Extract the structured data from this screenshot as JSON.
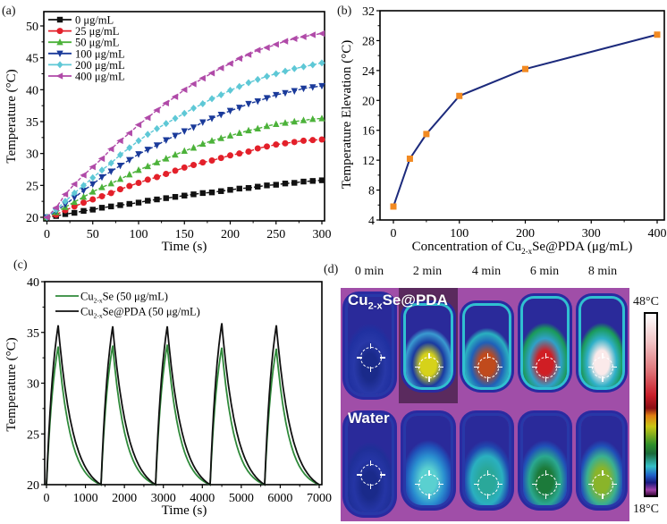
{
  "chart_data": [
    {
      "panel": "(a)",
      "type": "line",
      "title": "",
      "xlabel": "Time (s)",
      "ylabel": "Temperature (°C)",
      "xlim": [
        0,
        300
      ],
      "ylim": [
        20,
        51
      ],
      "xticks": [
        0,
        50,
        100,
        150,
        200,
        250,
        300
      ],
      "yticks": [
        20,
        25,
        30,
        35,
        40,
        45,
        50
      ],
      "legend_position": "top-left",
      "x": [
        0,
        10,
        20,
        30,
        40,
        50,
        60,
        70,
        80,
        90,
        100,
        110,
        120,
        130,
        140,
        150,
        160,
        170,
        180,
        190,
        200,
        210,
        220,
        230,
        240,
        250,
        260,
        270,
        280,
        290,
        300
      ],
      "series": [
        {
          "name": "0 μg/mL",
          "color": "#111111",
          "marker": "square",
          "values": [
            20,
            20.2,
            20.5,
            20.7,
            21.0,
            21.2,
            21.5,
            21.7,
            21.9,
            22.1,
            22.3,
            22.6,
            22.8,
            23.0,
            23.2,
            23.4,
            23.6,
            23.8,
            23.9,
            24.1,
            24.3,
            24.5,
            24.6,
            24.8,
            25.0,
            25.1,
            25.3,
            25.4,
            25.6,
            25.7,
            25.8
          ]
        },
        {
          "name": "25 μg/mL",
          "color": "#e3202a",
          "marker": "circle",
          "values": [
            20,
            20.4,
            21.1,
            21.7,
            22.3,
            22.8,
            23.3,
            23.8,
            24.4,
            24.9,
            25.4,
            25.9,
            26.3,
            26.8,
            27.3,
            27.8,
            28.2,
            28.6,
            28.9,
            29.3,
            29.7,
            30.0,
            30.3,
            30.8,
            31.1,
            31.4,
            31.6,
            31.8,
            32.0,
            32.1,
            32.2
          ]
        },
        {
          "name": "50 μg/mL",
          "color": "#4cb23a",
          "marker": "triangle-up",
          "values": [
            20,
            20.8,
            21.6,
            22.4,
            23.2,
            24.0,
            24.7,
            25.3,
            26.0,
            26.7,
            27.4,
            28.0,
            28.6,
            29.2,
            29.8,
            30.4,
            30.9,
            31.5,
            32.0,
            32.4,
            32.8,
            33.2,
            33.6,
            33.9,
            34.3,
            34.6,
            34.8,
            35.0,
            35.2,
            35.4,
            35.5
          ]
        },
        {
          "name": "100 μg/mL",
          "color": "#1a3a9a",
          "marker": "triangle-down",
          "values": [
            20,
            21.0,
            22.0,
            23.1,
            24.2,
            25.2,
            26.3,
            27.2,
            28.1,
            29.0,
            29.9,
            30.6,
            31.3,
            32.1,
            32.8,
            33.5,
            34.1,
            34.9,
            35.5,
            36.1,
            36.7,
            37.2,
            37.8,
            38.2,
            38.7,
            39.2,
            39.5,
            39.8,
            40.2,
            40.4,
            40.6
          ]
        },
        {
          "name": "200 μg/mL",
          "color": "#5ec8d6",
          "marker": "diamond",
          "values": [
            20,
            21.2,
            22.5,
            23.8,
            25.0,
            26.2,
            27.4,
            28.5,
            29.8,
            30.9,
            32.0,
            33.0,
            33.9,
            34.7,
            35.5,
            36.3,
            37.1,
            37.8,
            38.6,
            39.2,
            39.9,
            40.5,
            41.1,
            41.6,
            42.1,
            42.5,
            42.9,
            43.3,
            43.6,
            43.9,
            44.2
          ]
        },
        {
          "name": "400 μg/mL",
          "color": "#b04aa8",
          "marker": "triangle-left",
          "values": [
            20,
            21.5,
            23.6,
            25.2,
            26.6,
            27.9,
            29.2,
            30.7,
            32.0,
            33.2,
            34.5,
            35.6,
            36.8,
            37.9,
            38.9,
            40.0,
            40.9,
            41.8,
            42.6,
            43.4,
            44.1,
            44.9,
            45.5,
            46.2,
            46.6,
            47.1,
            47.6,
            48.0,
            48.3,
            48.6,
            48.8
          ]
        }
      ]
    },
    {
      "panel": "(b)",
      "type": "line",
      "title": "",
      "xlabel_main": "Concentration of Cu",
      "xlabel_sub": "2-x",
      "xlabel_rest": "Se@PDA (μg/mL)",
      "ylabel": "Temperature Elevation (°C)",
      "xlim": [
        -15,
        405
      ],
      "ylim": [
        4,
        32
      ],
      "xticks": [
        0,
        100,
        200,
        300,
        400
      ],
      "yticks": [
        4,
        8,
        12,
        16,
        20,
        24,
        28,
        32
      ],
      "line_color": "#1c2a7c",
      "marker_color": "#f28a22",
      "x": [
        0,
        25,
        50,
        100,
        200,
        400
      ],
      "values": [
        5.8,
        12.2,
        15.5,
        20.6,
        24.2,
        28.8
      ]
    },
    {
      "panel": "(c)",
      "type": "line",
      "title": "",
      "xlabel": "Time (s)",
      "ylabel": "Temperature (°C)",
      "xlim": [
        0,
        7000
      ],
      "ylim": [
        20,
        40
      ],
      "xticks": [
        0,
        1000,
        2000,
        3000,
        4000,
        5000,
        6000,
        7000
      ],
      "yticks": [
        20,
        25,
        30,
        35,
        40
      ],
      "legend_position": "top-left",
      "cycle_period_s": 1400,
      "laser_on_s": 300,
      "series": [
        {
          "name_main": "Cu",
          "name_sub": "2-x",
          "name_rest": "Se (50 μg/mL)",
          "color": "#2f8a3a",
          "cycle_peaks": [
            33.6,
            33.7,
            33.8,
            33.5,
            33.4
          ],
          "baseline": 20
        },
        {
          "name_main": "Cu",
          "name_sub": "2-x",
          "name_rest": "Se@PDA (50 μg/mL)",
          "color": "#111111",
          "cycle_peaks": [
            35.7,
            35.6,
            35.6,
            35.9,
            35.7
          ],
          "baseline": 20
        }
      ]
    },
    {
      "panel": "(d)",
      "type": "heatmap",
      "title": "",
      "columns": [
        "0 min",
        "2 min",
        "4 min",
        "6 min",
        "8 min"
      ],
      "rows": [
        {
          "label_main": "Cu",
          "label_sub": "2-x",
          "label_rest": "Se@PDA",
          "spot_colors": [
            "#1a2a8a",
            "#d6d21a",
            "#c04a1c",
            "#d01e24",
            "#fbeaea"
          ]
        },
        {
          "label_main": "Water",
          "label_sub": "",
          "label_rest": "",
          "spot_colors": [
            "#1a2a8a",
            "#5ad0d0",
            "#2aa89a",
            "#1c7a3a",
            "#8ab42a"
          ]
        }
      ],
      "colorbar": {
        "max_label": "48°C",
        "min_label": "18°C",
        "max": 48,
        "min": 18
      }
    }
  ],
  "labels": {
    "a": "(a)",
    "b": "(b)",
    "c": "(c)",
    "d": "(d)"
  }
}
